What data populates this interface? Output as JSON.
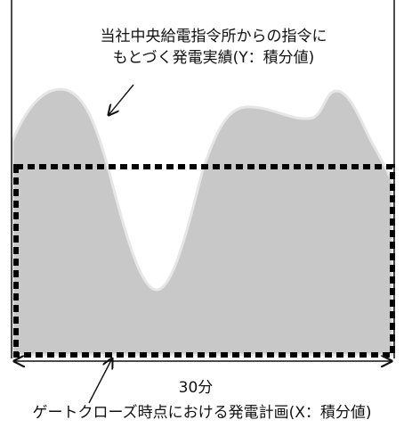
{
  "labels": {
    "actual_line1": "当社中央給電指令所からの指令に",
    "actual_line2": "もとづく発電実績(Y：積分値)",
    "duration": "30分",
    "plan": "ゲートクローズ時点における発電計画(X：積分値)"
  },
  "colors": {
    "actual_fill": "#c8c8c8",
    "actual_outline": "#e6e6e6",
    "plan_border": "#000000",
    "axis": "#111111"
  }
}
